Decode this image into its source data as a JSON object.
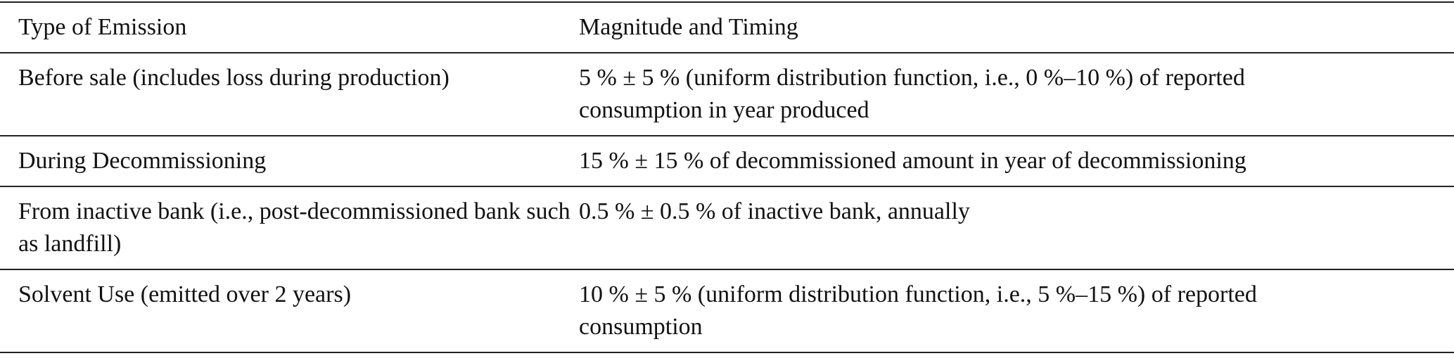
{
  "table": {
    "header": [
      "Type of Emission",
      "Magnitude and Timing"
    ],
    "rows": [
      [
        "Before sale (includes loss during production)",
        "5 % ± 5 % (uniform distribution function, i.e., 0 %–10 %) of reported consumption in year produced"
      ],
      [
        "During Decommissioning",
        "15 % ± 15 % of decommissioned amount in year of decommissioning"
      ],
      [
        "From inactive bank (i.e., post-decommissioned bank such as landfill)",
        "0.5 % ± 0.5 % of inactive bank, annually"
      ],
      [
        "Solvent Use (emitted over 2 years)",
        "10 % ± 5 % (uniform distribution function, i.e., 5 %–15 %) of reported consumption"
      ]
    ]
  }
}
